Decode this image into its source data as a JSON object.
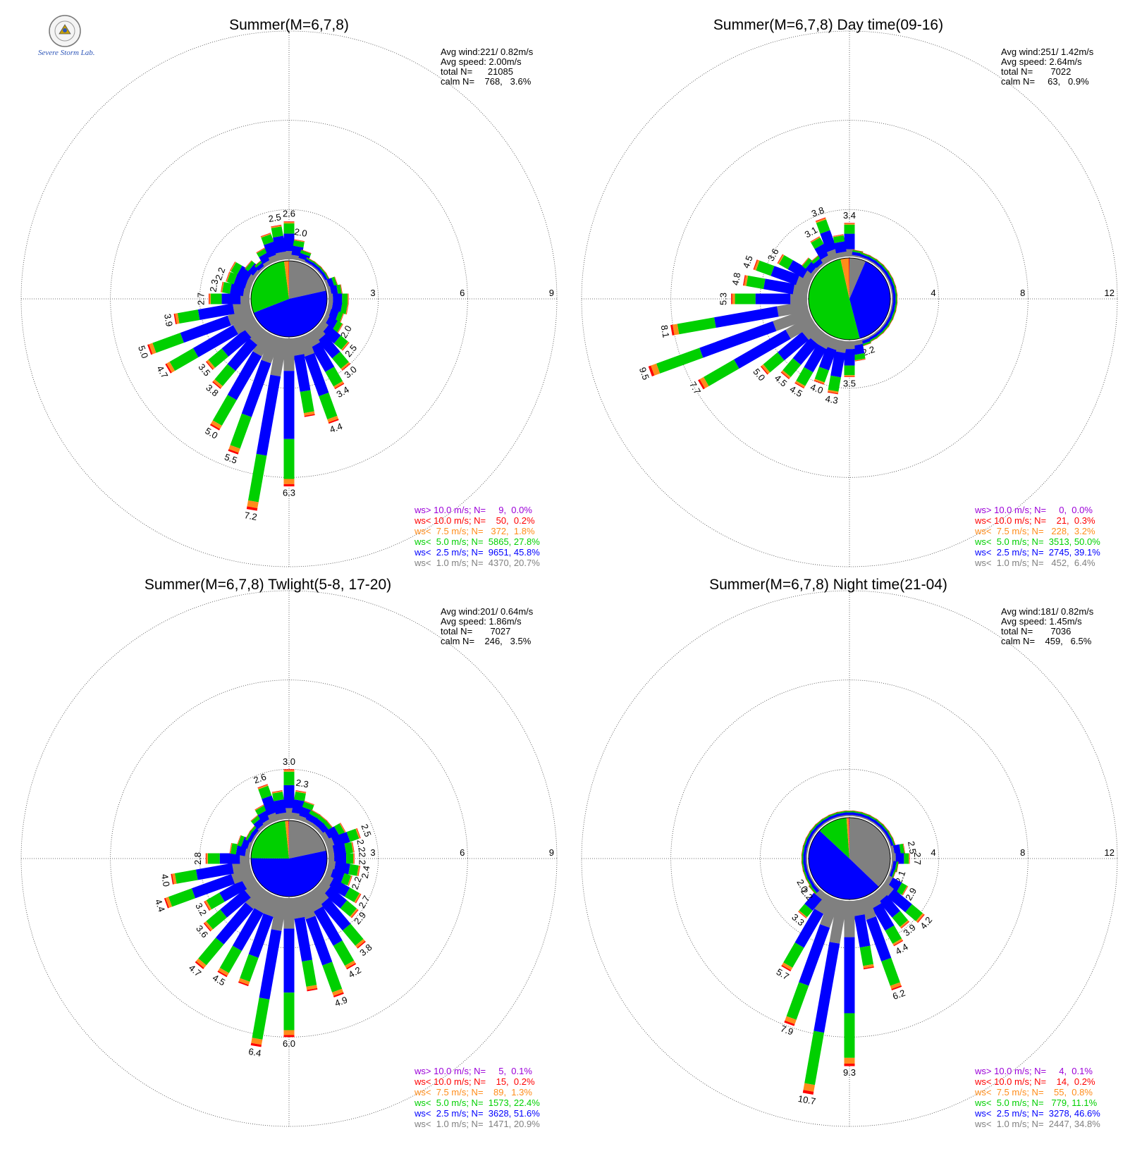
{
  "colors": {
    "ws_gt_10": "#9b00d8",
    "ws_lt_10": "#ff0000",
    "ws_lt_7_5": "#ff8c1a",
    "ws_lt_5": "#00d000",
    "ws_lt_2_5": "#0000ff",
    "ws_lt_1": "#808080"
  },
  "logo": {
    "text": "Severe Storm Lab.",
    "icon": "seal-icon"
  },
  "chart_data": [
    {
      "type": "wind-rose",
      "title": "Summer(M=6,7,8)",
      "rings": [
        3,
        6,
        9
      ],
      "ring_max": 9,
      "stats": [
        "Avg wind:221/ 0.82m/s",
        "Avg speed: 2.00m/s",
        "total N=      21085",
        "calm N=    768,   3.6%"
      ],
      "pie": [
        20.7,
        45.8,
        27.8,
        1.8,
        0.2,
        0.0
      ],
      "directions": [
        {
          "dir": 0,
          "value": 2.6,
          "label": "2.6"
        },
        {
          "dir": 10,
          "value": 2.0,
          "label": "2.0"
        },
        {
          "dir": 20,
          "value": 1.7
        },
        {
          "dir": 30,
          "value": 1.5
        },
        {
          "dir": 40,
          "value": 1.4
        },
        {
          "dir": 50,
          "value": 1.3
        },
        {
          "dir": 60,
          "value": 1.5
        },
        {
          "dir": 70,
          "value": 1.7
        },
        {
          "dir": 80,
          "value": 1.8
        },
        {
          "dir": 90,
          "value": 2.0
        },
        {
          "dir": 100,
          "value": 2.0
        },
        {
          "dir": 110,
          "value": 1.9
        },
        {
          "dir": 120,
          "value": 2.0,
          "label": "2.0"
        },
        {
          "dir": 130,
          "value": 2.5,
          "label": "2.5"
        },
        {
          "dir": 140,
          "value": 3.0,
          "label": "3.0"
        },
        {
          "dir": 150,
          "value": 3.4,
          "label": "3.4"
        },
        {
          "dir": 160,
          "value": 4.4,
          "label": "4.4"
        },
        {
          "dir": 170,
          "value": 4.0
        },
        {
          "dir": 180,
          "value": 6.3,
          "label": "6.3"
        },
        {
          "dir": 190,
          "value": 7.2,
          "label": "7.2"
        },
        {
          "dir": 200,
          "value": 5.5,
          "label": "5.5"
        },
        {
          "dir": 210,
          "value": 5.0,
          "label": "5.0"
        },
        {
          "dir": 220,
          "value": 3.8,
          "label": "3.8"
        },
        {
          "dir": 230,
          "value": 3.5,
          "label": "3.5"
        },
        {
          "dir": 240,
          "value": 4.7,
          "label": "4.7"
        },
        {
          "dir": 250,
          "value": 5.0,
          "label": "5.0"
        },
        {
          "dir": 260,
          "value": 3.9,
          "label": "3.9"
        },
        {
          "dir": 270,
          "value": 2.7,
          "label": "2.7"
        },
        {
          "dir": 280,
          "value": 2.3,
          "label": "2.3"
        },
        {
          "dir": 290,
          "value": 2.2,
          "label": "2.2"
        },
        {
          "dir": 300,
          "value": 2.2
        },
        {
          "dir": 310,
          "value": 1.8
        },
        {
          "dir": 320,
          "value": 1.6
        },
        {
          "dir": 330,
          "value": 1.9
        },
        {
          "dir": 340,
          "value": 2.3
        },
        {
          "dir": 350,
          "value": 2.5,
          "label": "2.5"
        }
      ],
      "legend": [
        {
          "text": "ws> 10.0 m/s; N=     9,  0.0%",
          "color": "ws_gt_10"
        },
        {
          "text": "ws< 10.0 m/s; N=    50,  0.2%",
          "color": "ws_lt_10"
        },
        {
          "text": "ws<  7.5 m/s; N=   372,  1.8%",
          "color": "ws_lt_7_5"
        },
        {
          "text": "ws<  5.0 m/s; N=  5865, 27.8%",
          "color": "ws_lt_5"
        },
        {
          "text": "ws<  2.5 m/s; N=  9651, 45.8%",
          "color": "ws_lt_2_5"
        },
        {
          "text": "ws<  1.0 m/s; N=  4370, 20.7%",
          "color": "ws_lt_1"
        }
      ]
    },
    {
      "type": "wind-rose",
      "title": "Summer(M=6,7,8) Day time(09-16)",
      "rings": [
        4,
        8,
        12
      ],
      "ring_max": 12,
      "stats": [
        "Avg wind:251/ 1.42m/s",
        "Avg speed: 2.64m/s",
        "total N=       7022",
        "calm N=     63,   0.9%"
      ],
      "pie": [
        6.4,
        39.1,
        50.0,
        3.2,
        0.3,
        0.0
      ],
      "directions": [
        {
          "dir": 0,
          "value": 3.4,
          "label": "3.4"
        },
        {
          "dir": 10,
          "value": 2.2
        },
        {
          "dir": 20,
          "value": 1.8
        },
        {
          "dir": 30,
          "value": 1.6
        },
        {
          "dir": 40,
          "value": 1.4
        },
        {
          "dir": 50,
          "value": 1.2
        },
        {
          "dir": 60,
          "value": 1.0
        },
        {
          "dir": 70,
          "value": 0.9
        },
        {
          "dir": 80,
          "value": 0.8
        },
        {
          "dir": 90,
          "value": 0.7
        },
        {
          "dir": 100,
          "value": 0.7
        },
        {
          "dir": 110,
          "value": 0.8
        },
        {
          "dir": 120,
          "value": 0.9
        },
        {
          "dir": 130,
          "value": 1.2
        },
        {
          "dir": 140,
          "value": 1.5
        },
        {
          "dir": 150,
          "value": 1.9
        },
        {
          "dir": 160,
          "value": 2.2,
          "label": "2.2"
        },
        {
          "dir": 170,
          "value": 2.8
        },
        {
          "dir": 180,
          "value": 3.5,
          "label": "3.5"
        },
        {
          "dir": 190,
          "value": 4.3,
          "label": "4.3"
        },
        {
          "dir": 200,
          "value": 4.0,
          "label": "4.0"
        },
        {
          "dir": 210,
          "value": 4.5,
          "label": "4.5"
        },
        {
          "dir": 220,
          "value": 4.5,
          "label": "4.5"
        },
        {
          "dir": 230,
          "value": 5.0,
          "label": "5.0"
        },
        {
          "dir": 240,
          "value": 7.7,
          "label": "7.7"
        },
        {
          "dir": 250,
          "value": 9.5,
          "label": "9.5"
        },
        {
          "dir": 260,
          "value": 8.1,
          "label": "8.1"
        },
        {
          "dir": 270,
          "value": 5.3,
          "label": "5.3"
        },
        {
          "dir": 280,
          "value": 4.8,
          "label": "4.8"
        },
        {
          "dir": 290,
          "value": 4.5,
          "label": "4.5"
        },
        {
          "dir": 300,
          "value": 3.6,
          "label": "3.6"
        },
        {
          "dir": 310,
          "value": 2.6
        },
        {
          "dir": 320,
          "value": 2.4
        },
        {
          "dir": 330,
          "value": 3.1,
          "label": "3.1"
        },
        {
          "dir": 340,
          "value": 3.8,
          "label": "3.8"
        },
        {
          "dir": 350,
          "value": 2.9
        }
      ],
      "legend": [
        {
          "text": "ws> 10.0 m/s; N=     0,  0.0%",
          "color": "ws_gt_10"
        },
        {
          "text": "ws< 10.0 m/s; N=    21,  0.3%",
          "color": "ws_lt_10"
        },
        {
          "text": "ws<  7.5 m/s; N=   228,  3.2%",
          "color": "ws_lt_7_5"
        },
        {
          "text": "ws<  5.0 m/s; N=  3513, 50.0%",
          "color": "ws_lt_5"
        },
        {
          "text": "ws<  2.5 m/s; N=  2745, 39.1%",
          "color": "ws_lt_2_5"
        },
        {
          "text": "ws<  1.0 m/s; N=   452,  6.4%",
          "color": "ws_lt_1"
        }
      ]
    },
    {
      "type": "wind-rose",
      "title": "Summer(M=6,7,8) Twlight(5-8, 17-20)",
      "rings": [
        3,
        6,
        9
      ],
      "ring_max": 9,
      "stats": [
        "Avg wind:201/ 0.64m/s",
        "Avg speed: 1.86m/s",
        "total N=       7027",
        "calm N=    246,   3.5%"
      ],
      "pie": [
        20.9,
        51.6,
        22.4,
        1.3,
        0.2,
        0.1
      ],
      "directions": [
        {
          "dir": 0,
          "value": 3.0,
          "label": "3.0"
        },
        {
          "dir": 10,
          "value": 2.3,
          "label": "2.3"
        },
        {
          "dir": 20,
          "value": 2.0
        },
        {
          "dir": 30,
          "value": 1.8
        },
        {
          "dir": 40,
          "value": 1.8
        },
        {
          "dir": 50,
          "value": 1.8
        },
        {
          "dir": 60,
          "value": 2.1
        },
        {
          "dir": 70,
          "value": 2.5,
          "label": "2.5"
        },
        {
          "dir": 80,
          "value": 2.2,
          "label": "2.2"
        },
        {
          "dir": 90,
          "value": 2.2,
          "label": "2.2"
        },
        {
          "dir": 100,
          "value": 2.4,
          "label": "2.4"
        },
        {
          "dir": 110,
          "value": 2.2,
          "label": "2.2"
        },
        {
          "dir": 120,
          "value": 2.7,
          "label": "2.7"
        },
        {
          "dir": 130,
          "value": 2.9,
          "label": "2.9"
        },
        {
          "dir": 140,
          "value": 3.8,
          "label": "3.8"
        },
        {
          "dir": 150,
          "value": 4.2,
          "label": "4.2"
        },
        {
          "dir": 160,
          "value": 4.9,
          "label": "4.9"
        },
        {
          "dir": 170,
          "value": 4.5
        },
        {
          "dir": 180,
          "value": 6.0,
          "label": "6.0"
        },
        {
          "dir": 190,
          "value": 6.4,
          "label": "6.4"
        },
        {
          "dir": 200,
          "value": 4.5
        },
        {
          "dir": 210,
          "value": 4.5,
          "label": "4.5"
        },
        {
          "dir": 220,
          "value": 4.7,
          "label": "4.7"
        },
        {
          "dir": 230,
          "value": 3.6,
          "label": "3.6"
        },
        {
          "dir": 240,
          "value": 3.2,
          "label": "3.2"
        },
        {
          "dir": 250,
          "value": 4.4,
          "label": "4.4"
        },
        {
          "dir": 260,
          "value": 4.0,
          "label": "4.0"
        },
        {
          "dir": 270,
          "value": 2.8,
          "label": "2.8"
        },
        {
          "dir": 280,
          "value": 2.0
        },
        {
          "dir": 290,
          "value": 1.8
        },
        {
          "dir": 300,
          "value": 1.6
        },
        {
          "dir": 310,
          "value": 1.6
        },
        {
          "dir": 320,
          "value": 1.8
        },
        {
          "dir": 330,
          "value": 2.0
        },
        {
          "dir": 340,
          "value": 2.6,
          "label": "2.6"
        },
        {
          "dir": 350,
          "value": 2.3
        }
      ],
      "legend": [
        {
          "text": "ws> 10.0 m/s; N=     5,  0.1%",
          "color": "ws_gt_10"
        },
        {
          "text": "ws< 10.0 m/s; N=    15,  0.2%",
          "color": "ws_lt_10"
        },
        {
          "text": "ws<  7.5 m/s; N=    89,  1.3%",
          "color": "ws_lt_7_5"
        },
        {
          "text": "ws<  5.0 m/s; N=  1573, 22.4%",
          "color": "ws_lt_5"
        },
        {
          "text": "ws<  2.5 m/s; N=  3628, 51.6%",
          "color": "ws_lt_2_5"
        },
        {
          "text": "ws<  1.0 m/s; N=  1471, 20.9%",
          "color": "ws_lt_1"
        }
      ]
    },
    {
      "type": "wind-rose",
      "title": "Summer(M=6,7,8) Night time(21-04)",
      "rings": [
        4,
        8,
        12
      ],
      "ring_max": 12,
      "stats": [
        "Avg wind:181/ 0.82m/s",
        "Avg speed: 1.45m/s",
        "total N=       7036",
        "calm N=    459,   6.5%"
      ],
      "pie": [
        34.8,
        46.6,
        11.1,
        0.8,
        0.2,
        0.1
      ],
      "directions": [
        {
          "dir": 0,
          "value": 1.6
        },
        {
          "dir": 10,
          "value": 1.6
        },
        {
          "dir": 20,
          "value": 1.5
        },
        {
          "dir": 30,
          "value": 1.6
        },
        {
          "dir": 40,
          "value": 1.7
        },
        {
          "dir": 50,
          "value": 1.7
        },
        {
          "dir": 60,
          "value": 1.8
        },
        {
          "dir": 70,
          "value": 2.1
        },
        {
          "dir": 80,
          "value": 2.5,
          "label": "2.5"
        },
        {
          "dir": 90,
          "value": 2.7,
          "label": "2.7"
        },
        {
          "dir": 100,
          "value": 2.2
        },
        {
          "dir": 110,
          "value": 2.1,
          "label": "2.1"
        },
        {
          "dir": 120,
          "value": 2.9,
          "label": "2.9"
        },
        {
          "dir": 130,
          "value": 4.2,
          "label": "4.2"
        },
        {
          "dir": 140,
          "value": 3.9,
          "label": "3.9"
        },
        {
          "dir": 150,
          "value": 4.4,
          "label": "4.4"
        },
        {
          "dir": 160,
          "value": 6.2,
          "label": "6.2"
        },
        {
          "dir": 170,
          "value": 5.0
        },
        {
          "dir": 180,
          "value": 9.3,
          "label": "9.3"
        },
        {
          "dir": 190,
          "value": 10.7,
          "label": "10.7"
        },
        {
          "dir": 200,
          "value": 7.9,
          "label": "7.9"
        },
        {
          "dir": 210,
          "value": 5.7,
          "label": "5.7"
        },
        {
          "dir": 220,
          "value": 3.3,
          "label": "3.3"
        },
        {
          "dir": 230,
          "value": 2.2,
          "label": "2.2"
        },
        {
          "dir": 240,
          "value": 2.0,
          "label": "2.0"
        },
        {
          "dir": 250,
          "value": 1.9
        },
        {
          "dir": 260,
          "value": 1.8
        },
        {
          "dir": 270,
          "value": 1.7
        },
        {
          "dir": 280,
          "value": 1.6
        },
        {
          "dir": 290,
          "value": 1.6
        },
        {
          "dir": 300,
          "value": 1.6
        },
        {
          "dir": 310,
          "value": 1.6
        },
        {
          "dir": 320,
          "value": 1.6
        },
        {
          "dir": 330,
          "value": 1.6
        },
        {
          "dir": 340,
          "value": 1.8
        },
        {
          "dir": 350,
          "value": 1.8
        }
      ],
      "legend": [
        {
          "text": "ws> 10.0 m/s; N=     4,  0.1%",
          "color": "ws_gt_10"
        },
        {
          "text": "ws< 10.0 m/s; N=    14,  0.2%",
          "color": "ws_lt_10"
        },
        {
          "text": "ws<  7.5 m/s; N=    55,  0.8%",
          "color": "ws_lt_7_5"
        },
        {
          "text": "ws<  5.0 m/s; N=   779, 11.1%",
          "color": "ws_lt_5"
        },
        {
          "text": "ws<  2.5 m/s; N=  3278, 46.6%",
          "color": "ws_lt_2_5"
        },
        {
          "text": "ws<  1.0 m/s; N=  2447, 34.8%",
          "color": "ws_lt_1"
        }
      ]
    }
  ]
}
